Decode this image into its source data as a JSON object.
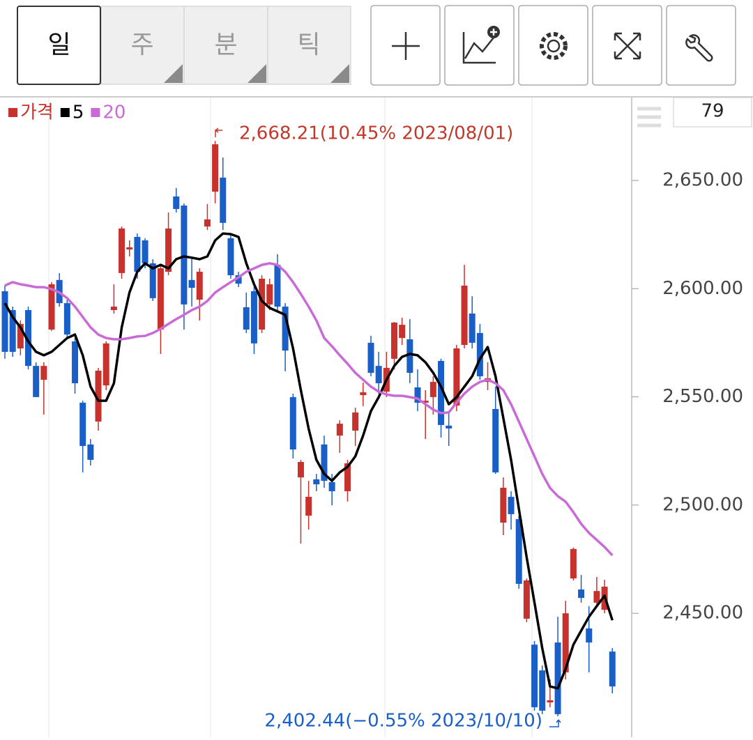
{
  "toolbar": {
    "tabs": [
      "일",
      "주",
      "분",
      "틱"
    ]
  },
  "chart_data": {
    "type": "candlestick",
    "count": "79",
    "up_color": "#c8322d",
    "down_color": "#1a5fc8",
    "ylim": [
      2393.7,
      2688.3
    ],
    "yticks": [
      {
        "value": 2450,
        "label": "2,450.00"
      },
      {
        "value": 2500,
        "label": "2,500.00"
      },
      {
        "value": 2550,
        "label": "2,550.00"
      },
      {
        "value": 2600,
        "label": "2,600.00"
      },
      {
        "value": 2650,
        "label": "2,650.00"
      }
    ],
    "annotations": [
      {
        "text": "2,668.21(10.45% 2023/08/01)",
        "color": "#c0392b"
      },
      {
        "text": "2,402.44(−0.55% 2023/10/10)",
        "color": "#1a5fc8"
      }
    ],
    "series": [
      {
        "name": "가격",
        "color": "#c8322d",
        "open": [
          2598.8,
          2590.1,
          2572.4,
          2590.1,
          2564.3,
          2557.9,
          2581.1,
          2604.0,
          2593.3,
          2575.6,
          2547.3,
          2528.0,
          2538.6,
          2555.3,
          2590.1,
          2607.2,
          2618.1,
          2623.9,
          2622.3,
          2611.7,
          2581.1,
          2607.8,
          2642.6,
          2638.4,
          2604.0,
          2594.9,
          2628.7,
          2644.8,
          2651.3,
          2623.3,
          2606.2,
          2591.4,
          2598.8,
          2581.1,
          2592.7,
          2611.0,
          2591.7,
          2549.9,
          2512.8,
          2495.1,
          2511.9,
          2528.0,
          2510.6,
          2532.1,
          2506.4,
          2534.4,
          2550.8,
          2575.0,
          2564.3,
          2552.4,
          2567.6,
          2577.2,
          2576.6,
          2554.4,
          2547.3,
          2549.9,
          2566.6,
          2536.7,
          2546.0,
          2574.0,
          2588.5,
          2579.5,
          2556.9,
          2544.4,
          2491.9,
          2503.8,
          2493.5,
          2447.5,
          2435.5,
          2423.6,
          2408.8,
          2436.5,
          2422.7,
          2466.1,
          2461.0,
          2443.0,
          2454.9,
          2451.6,
          2432.3
        ],
        "high": [
          2601.4,
          2591.7,
          2585.3,
          2591.7,
          2566.0,
          2566.0,
          2603.0,
          2607.2,
          2594.9,
          2577.2,
          2548.2,
          2530.5,
          2563.4,
          2575.6,
          2602.0,
          2628.7,
          2622.3,
          2625.5,
          2623.3,
          2613.6,
          2611.0,
          2635.2,
          2646.5,
          2639.4,
          2614.3,
          2609.4,
          2639.1,
          2668.21,
          2660.6,
          2625.5,
          2607.8,
          2598.2,
          2600.7,
          2606.2,
          2604.6,
          2615.9,
          2593.3,
          2551.5,
          2520.9,
          2511.2,
          2514.4,
          2532.1,
          2514.4,
          2539.2,
          2520.9,
          2545.0,
          2556.6,
          2578.2,
          2570.8,
          2570.8,
          2584.6,
          2586.6,
          2585.9,
          2562.7,
          2553.1,
          2559.5,
          2567.6,
          2543.4,
          2574.0,
          2611.0,
          2596.5,
          2583.7,
          2566.0,
          2554.7,
          2512.8,
          2506.4,
          2495.1,
          2466.1,
          2437.2,
          2425.9,
          2419.4,
          2448.4,
          2455.8,
          2480.3,
          2467.7,
          2453.3,
          2466.8,
          2465.5,
          2433.9
        ],
        "low": [
          2567.6,
          2568.5,
          2569.2,
          2562.7,
          2549.9,
          2541.8,
          2580.4,
          2591.7,
          2577.2,
          2551.5,
          2515.1,
          2518.3,
          2534.4,
          2553.1,
          2588.5,
          2604.6,
          2614.9,
          2604.6,
          2609.4,
          2594.3,
          2569.8,
          2606.2,
          2635.2,
          2581.1,
          2591.7,
          2585.3,
          2627.1,
          2639.4,
          2627.1,
          2604.6,
          2600.7,
          2579.5,
          2569.8,
          2579.5,
          2590.1,
          2590.1,
          2561.8,
          2521.5,
          2482.2,
          2488.7,
          2506.4,
          2508.0,
          2499.9,
          2524.1,
          2501.6,
          2527.3,
          2545.7,
          2559.5,
          2551.5,
          2549.9,
          2562.7,
          2574.0,
          2556.3,
          2543.4,
          2530.5,
          2541.8,
          2531.2,
          2527.3,
          2543.4,
          2572.4,
          2572.4,
          2557.9,
          2553.1,
          2514.4,
          2486.1,
          2488.7,
          2461.3,
          2445.9,
          2405.0,
          2403.4,
          2406.6,
          2402.44,
          2419.4,
          2465.2,
          2454.9,
          2422.7,
          2453.3,
          2450.0,
          2413.0
        ],
        "close": [
          2570.8,
          2570.8,
          2583.7,
          2564.3,
          2549.9,
          2564.3,
          2602.0,
          2593.3,
          2578.8,
          2556.3,
          2527.3,
          2520.9,
          2562.1,
          2574.7,
          2591.7,
          2627.8,
          2619.1,
          2607.8,
          2611.7,
          2595.6,
          2609.4,
          2627.8,
          2636.8,
          2592.7,
          2600.4,
          2607.8,
          2632.0,
          2666.7,
          2630.4,
          2606.2,
          2602.3,
          2581.1,
          2574.7,
          2604.6,
          2602.0,
          2591.7,
          2571.4,
          2525.7,
          2519.9,
          2503.8,
          2509.6,
          2511.2,
          2506.4,
          2537.6,
          2519.3,
          2542.8,
          2552.1,
          2561.1,
          2556.3,
          2563.4,
          2584.3,
          2583.3,
          2561.1,
          2547.3,
          2548.2,
          2556.9,
          2537.0,
          2535.4,
          2572.4,
          2601.4,
          2575.0,
          2559.5,
          2558.6,
          2515.1,
          2508.0,
          2495.8,
          2463.6,
          2465.2,
          2406.6,
          2405.0,
          2409.8,
          2403.4,
          2450.0,
          2479.7,
          2457.1,
          2436.5,
          2460.3,
          2462.3,
          2416.2
        ]
      },
      {
        "name": "5",
        "color": "#000000",
        "values": [
          2593.3,
          2586.9,
          2582.1,
          2575.6,
          2570.8,
          2569.2,
          2570.8,
          2574.0,
          2577.2,
          2578.8,
          2569.2,
          2554.7,
          2548.2,
          2548.2,
          2556.3,
          2582.1,
          2598.2,
          2607.8,
          2611.7,
          2609.4,
          2611.0,
          2609.4,
          2613.6,
          2614.9,
          2614.3,
          2613.6,
          2614.9,
          2622.3,
          2625.5,
          2625.2,
          2623.9,
          2611.7,
          2602.0,
          2594.3,
          2591.1,
          2589.5,
          2587.9,
          2572.4,
          2553.1,
          2535.4,
          2520.9,
          2514.4,
          2511.2,
          2515.1,
          2517.7,
          2522.5,
          2532.1,
          2543.4,
          2549.9,
          2557.9,
          2564.3,
          2568.5,
          2569.8,
          2569.2,
          2566.0,
          2561.1,
          2554.7,
          2546.6,
          2549.9,
          2554.7,
          2559.5,
          2567.6,
          2573.0,
          2559.5,
          2540.2,
          2520.9,
          2498.3,
          2475.8,
          2454.9,
          2433.9,
          2416.2,
          2415.3,
          2424.3,
          2435.5,
          2442.0,
          2448.4,
          2453.3,
          2458.1,
          2446.8
        ]
      },
      {
        "name": "20",
        "color": "#c86bd6",
        "values": [
          2601.4,
          2603.0,
          2602.0,
          2601.4,
          2600.7,
          2600.7,
          2599.8,
          2598.2,
          2595.6,
          2591.7,
          2586.9,
          2582.1,
          2578.8,
          2577.2,
          2576.6,
          2576.6,
          2577.2,
          2577.9,
          2578.2,
          2579.5,
          2581.4,
          2583.7,
          2585.9,
          2587.9,
          2590.1,
          2591.7,
          2594.3,
          2598.2,
          2600.7,
          2603.0,
          2605.2,
          2607.8,
          2609.4,
          2611.0,
          2611.7,
          2611.0,
          2607.8,
          2603.0,
          2597.5,
          2591.7,
          2585.3,
          2577.2,
          2573.4,
          2569.2,
          2565.3,
          2561.1,
          2557.9,
          2554.7,
          2552.4,
          2551.1,
          2550.5,
          2550.5,
          2549.9,
          2549.2,
          2546.6,
          2544.1,
          2542.5,
          2542.8,
          2547.3,
          2551.5,
          2554.7,
          2556.9,
          2557.9,
          2556.3,
          2553.1,
          2546.6,
          2538.6,
          2530.5,
          2522.5,
          2514.4,
          2507.9,
          2504.1,
          2501.6,
          2496.7,
          2491.3,
          2487.1,
          2483.9,
          2480.6,
          2476.8
        ]
      }
    ]
  }
}
